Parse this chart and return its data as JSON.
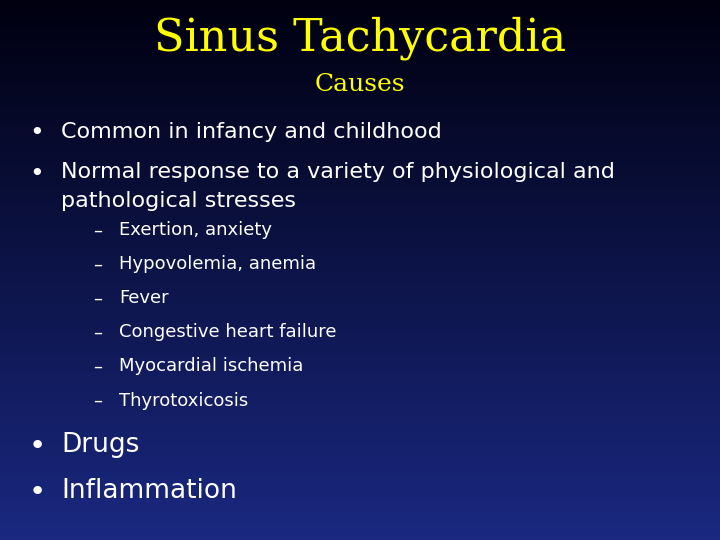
{
  "title": "Sinus Tachycardia",
  "subtitle": "Causes",
  "title_color": "#FFFF00",
  "subtitle_color": "#FFFF00",
  "text_color": "#FFFFFF",
  "bg_color_top": "#000010",
  "bg_color_bottom": "#1A2880",
  "title_fontsize": 32,
  "subtitle_fontsize": 18,
  "bullet_fontsize": 16,
  "sub_bullet_fontsize": 13,
  "final_fontsize": 19,
  "bullet1": "Common in infancy and childhood",
  "bullet2_line1": "Normal response to a variety of physiological and",
  "bullet2_line2": "pathological stresses",
  "sub_bullets": [
    "Exertion, anxiety",
    "Hypovolemia, anemia",
    "Fever",
    "Congestive heart failure",
    "Myocardial ischemia",
    "Thyrotoxicosis"
  ],
  "final_bullets": [
    "Drugs",
    "Inflammation"
  ]
}
